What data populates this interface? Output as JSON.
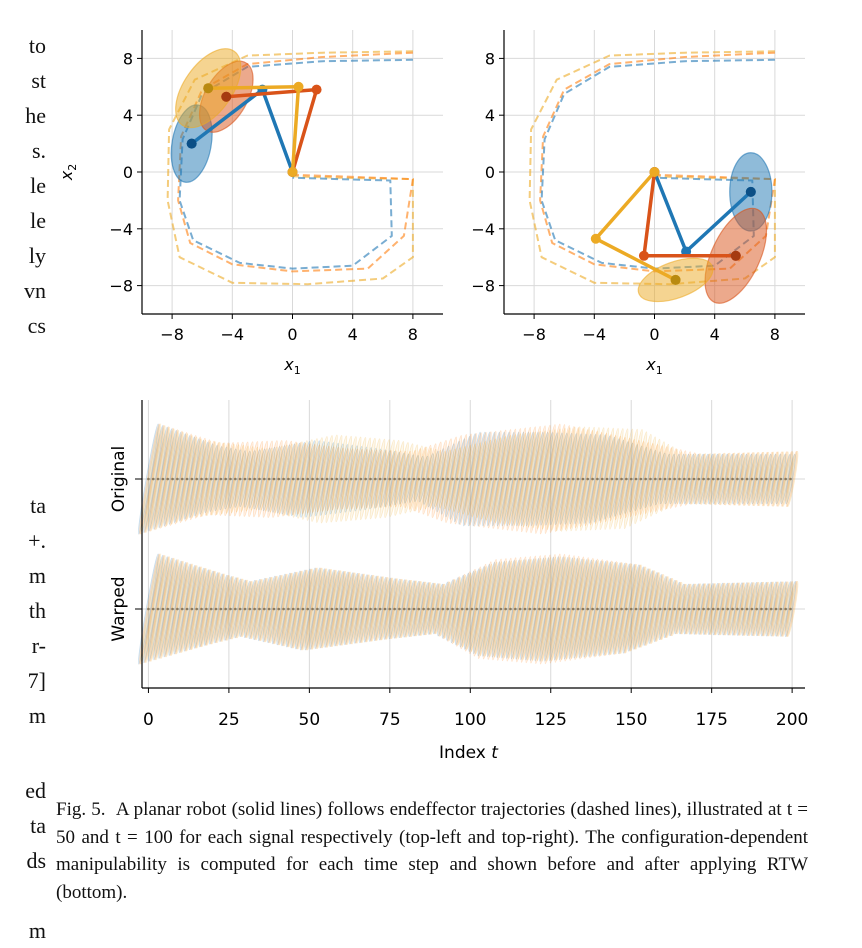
{
  "left_column_fragments": {
    "group1": [
      "to",
      "st",
      "he",
      "s.",
      "le",
      "le",
      "ly",
      "vn",
      "cs"
    ],
    "group2": [
      "ta",
      "+.",
      "m",
      "th",
      "r-",
      "7]",
      "m"
    ],
    "group3": [
      "ed",
      "ta",
      "ds"
    ],
    "group4": [
      "m"
    ]
  },
  "caption": {
    "prefix": "Fig. 5.",
    "text": "A planar robot (solid lines) follows endeffector trajectories (dashed lines), illustrated at t = 50 and t = 100 for each signal respectively (top-left and top-right). The configuration-dependent manipulability is computed for each time step and shown before and after applying RTW (bottom)."
  },
  "colors": {
    "blue": "#1f77b4",
    "orange": "#ff7f0e",
    "red": "#d62728",
    "yellow": "#ecaa24"
  },
  "chart_data": [
    {
      "type": "line",
      "panel": "top-left",
      "xlabel": "x1",
      "ylabel": "x2",
      "xlim": [
        -10,
        10
      ],
      "ylim": [
        -10,
        10
      ],
      "xticks": [
        -8,
        -4,
        0,
        4,
        8
      ],
      "yticks": [
        -8,
        -4,
        0,
        4,
        8
      ],
      "xtick_labels": [
        "−8",
        "−4",
        "0",
        "4",
        "8"
      ],
      "ytick_labels": [
        "−8",
        "−4",
        "0",
        "4",
        "8"
      ],
      "grid": true,
      "robot_arms": [
        {
          "color": "blue",
          "joints": [
            [
              0,
              0
            ],
            [
              -2,
              5.8
            ],
            [
              -6.7,
              2
            ]
          ]
        },
        {
          "color": "orange-red",
          "joints": [
            [
              0,
              0
            ],
            [
              1.6,
              5.8
            ],
            [
              -4.4,
              5.3
            ]
          ]
        },
        {
          "color": "yellow",
          "joints": [
            [
              0,
              0
            ],
            [
              0.4,
              6
            ],
            [
              -5.6,
              5.9
            ]
          ]
        }
      ],
      "ellipses": [
        {
          "color": "blue",
          "center": [
            -6.7,
            2
          ],
          "rx": 1.3,
          "ry": 2.6,
          "angle": 10
        },
        {
          "color": "orange-red",
          "center": [
            -4.4,
            5.3
          ],
          "rx": 1.4,
          "ry": 2.6,
          "angle": 30
        },
        {
          "color": "yellow",
          "center": [
            -5.6,
            5.9
          ],
          "rx": 1.6,
          "ry": 3.0,
          "angle": 35
        }
      ],
      "trajectories": [
        "blue dashed",
        "orange dashed",
        "yellow dashed"
      ]
    },
    {
      "type": "line",
      "panel": "top-right",
      "xlabel": "x1",
      "xlim": [
        -10,
        10
      ],
      "ylim": [
        -10,
        10
      ],
      "xticks": [
        -8,
        -4,
        0,
        4,
        8
      ],
      "yticks": [
        -8,
        -4,
        0,
        4,
        8
      ],
      "xtick_labels": [
        "−8",
        "−4",
        "0",
        "4",
        "8"
      ],
      "ytick_labels": [
        "−8",
        "−4",
        "0",
        "4",
        "8"
      ],
      "grid": true,
      "robot_arms": [
        {
          "color": "blue",
          "joints": [
            [
              0,
              0
            ],
            [
              2.1,
              -5.6
            ],
            [
              6.4,
              -1.4
            ]
          ]
        },
        {
          "color": "orange-red",
          "joints": [
            [
              0,
              0
            ],
            [
              -0.7,
              -5.9
            ],
            [
              5.4,
              -5.9
            ]
          ]
        },
        {
          "color": "yellow",
          "joints": [
            [
              0,
              0
            ],
            [
              -3.9,
              -4.7
            ],
            [
              1.4,
              -7.6
            ]
          ]
        }
      ],
      "ellipses": [
        {
          "color": "blue",
          "center": [
            6.4,
            -1.4
          ],
          "rx": 1.4,
          "ry": 2.6,
          "angle": 0
        },
        {
          "color": "orange-red",
          "center": [
            5.4,
            -5.9
          ],
          "rx": 1.6,
          "ry": 3.4,
          "angle": 25
        },
        {
          "color": "yellow",
          "center": [
            1.4,
            -7.6
          ],
          "rx": 1.2,
          "ry": 2.6,
          "angle": 70
        }
      ],
      "trajectories": [
        "blue dashed",
        "orange dashed",
        "yellow dashed"
      ]
    },
    {
      "type": "line",
      "panel": "bottom",
      "xlabel": "Index t",
      "xlim": [
        -2,
        204
      ],
      "xticks": [
        0,
        25,
        50,
        75,
        100,
        125,
        150,
        175,
        200
      ],
      "xtick_labels": [
        "0",
        "25",
        "50",
        "75",
        "100",
        "125",
        "150",
        "175",
        "200"
      ],
      "rows": [
        {
          "label": "Original",
          "series": [
            {
              "color": "blue",
              "envelope": [
                [
                  0,
                  1.0
                ],
                [
                  20,
                  0.6
                ],
                [
                  30,
                  0.5
                ],
                [
                  50,
                  0.7
                ],
                [
                  70,
                  0.55
                ],
                [
                  85,
                  0.4
                ],
                [
                  100,
                  0.85
                ],
                [
                  120,
                  0.85
                ],
                [
                  140,
                  0.8
                ],
                [
                  160,
                  0.45
                ],
                [
                  200,
                  0.45
                ]
              ]
            },
            {
              "color": "orange",
              "envelope": [
                [
                  0,
                  1.0
                ],
                [
                  20,
                  0.65
                ],
                [
                  40,
                  0.7
                ],
                [
                  60,
                  0.55
                ],
                [
                  80,
                  0.5
                ],
                [
                  95,
                  0.8
                ],
                [
                  125,
                  1.0
                ],
                [
                  150,
                  0.7
                ],
                [
                  170,
                  0.45
                ],
                [
                  200,
                  0.5
                ]
              ]
            },
            {
              "color": "yellow",
              "envelope": [
                [
                  0,
                  1.0
                ],
                [
                  15,
                  0.7
                ],
                [
                  35,
                  0.55
                ],
                [
                  55,
                  0.8
                ],
                [
                  75,
                  0.7
                ],
                [
                  90,
                  0.5
                ],
                [
                  110,
                  0.8
                ],
                [
                  130,
                  0.95
                ],
                [
                  150,
                  0.9
                ],
                [
                  165,
                  0.45
                ],
                [
                  200,
                  0.5
                ]
              ]
            }
          ]
        },
        {
          "label": "Warped",
          "series": [
            {
              "color": "blue",
              "envelope": [
                [
                  0,
                  1.0
                ],
                [
                  20,
                  0.65
                ],
                [
                  30,
                  0.5
                ],
                [
                  50,
                  0.75
                ],
                [
                  75,
                  0.55
                ],
                [
                  90,
                  0.45
                ],
                [
                  105,
                  0.85
                ],
                [
                  125,
                  0.95
                ],
                [
                  150,
                  0.8
                ],
                [
                  165,
                  0.45
                ],
                [
                  200,
                  0.5
                ]
              ]
            },
            {
              "color": "orange",
              "envelope": [
                [
                  0,
                  1.0
                ],
                [
                  20,
                  0.65
                ],
                [
                  30,
                  0.5
                ],
                [
                  50,
                  0.75
                ],
                [
                  75,
                  0.55
                ],
                [
                  90,
                  0.45
                ],
                [
                  105,
                  0.9
                ],
                [
                  125,
                  1.0
                ],
                [
                  150,
                  0.8
                ],
                [
                  165,
                  0.45
                ],
                [
                  200,
                  0.5
                ]
              ]
            },
            {
              "color": "yellow",
              "envelope": [
                [
                  0,
                  1.0
                ],
                [
                  20,
                  0.65
                ],
                [
                  30,
                  0.5
                ],
                [
                  50,
                  0.75
                ],
                [
                  75,
                  0.55
                ],
                [
                  90,
                  0.45
                ],
                [
                  105,
                  0.85
                ],
                [
                  125,
                  0.95
                ],
                [
                  150,
                  0.8
                ],
                [
                  165,
                  0.45
                ],
                [
                  200,
                  0.5
                ]
              ]
            }
          ]
        }
      ]
    }
  ]
}
